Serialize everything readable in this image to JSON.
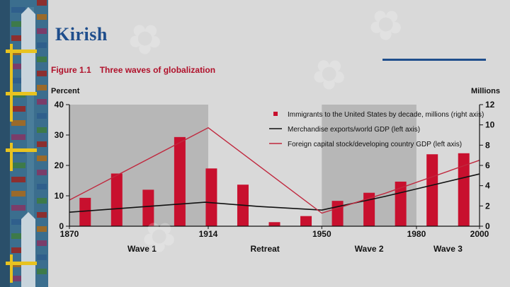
{
  "slide": {
    "title": "Kirish"
  },
  "figure": {
    "number": "Figure 1.1",
    "title": "Three waves of globalization"
  },
  "colors": {
    "bar": "#c8102e",
    "foreign_line": "#c0283e",
    "merch_line": "#111111",
    "shade": "#b7b7b7",
    "title_blue": "#1f4e8c"
  },
  "chart_data": {
    "type": "bar+line",
    "title": "Three waves of globalization",
    "left_axis": {
      "label": "Percent",
      "ticks": [
        0,
        10,
        20,
        30,
        40
      ],
      "range": [
        0,
        40
      ]
    },
    "right_axis": {
      "label": "Millions",
      "ticks": [
        0,
        2,
        4,
        6,
        8,
        10,
        12
      ],
      "range": [
        0,
        12
      ]
    },
    "x_axis": {
      "range": [
        1870,
        2000
      ],
      "ticks": [
        1870,
        1914,
        1950,
        1980,
        2000
      ]
    },
    "shaded_periods": [
      [
        1870,
        1914
      ],
      [
        1950,
        1980
      ]
    ],
    "periods": [
      {
        "label": "Wave 1",
        "x": 1893
      },
      {
        "label": "Retreat",
        "x": 1932
      },
      {
        "label": "Wave 2",
        "x": 1965
      },
      {
        "label": "Wave 3",
        "x": 1990
      }
    ],
    "bars": {
      "name": "Immigrants to the United States by decade, millions (right axis)",
      "axis": "right",
      "x": [
        1875,
        1885,
        1895,
        1905,
        1915,
        1925,
        1935,
        1945,
        1955,
        1965,
        1975,
        1985,
        1995
      ],
      "values": [
        2.8,
        5.2,
        3.6,
        8.8,
        5.7,
        4.1,
        0.4,
        1.0,
        2.5,
        3.3,
        4.4,
        7.1,
        7.2
      ]
    },
    "lines": [
      {
        "name": "Merchandise exports/world GDP (left axis)",
        "axis": "left",
        "x": [
          1870,
          1913,
          1930,
          1950,
          1970,
          2000
        ],
        "values": [
          4.6,
          7.9,
          6.5,
          5.3,
          9.8,
          17.2
        ]
      },
      {
        "name": "Foreign capital stock/developing country GDP  (left axis)",
        "axis": "left",
        "x": [
          1870,
          1914,
          1950,
          1970,
          2000
        ],
        "values": [
          8.6,
          32.4,
          4.3,
          10.8,
          21.7
        ]
      }
    ],
    "legend_position": "top-right"
  }
}
